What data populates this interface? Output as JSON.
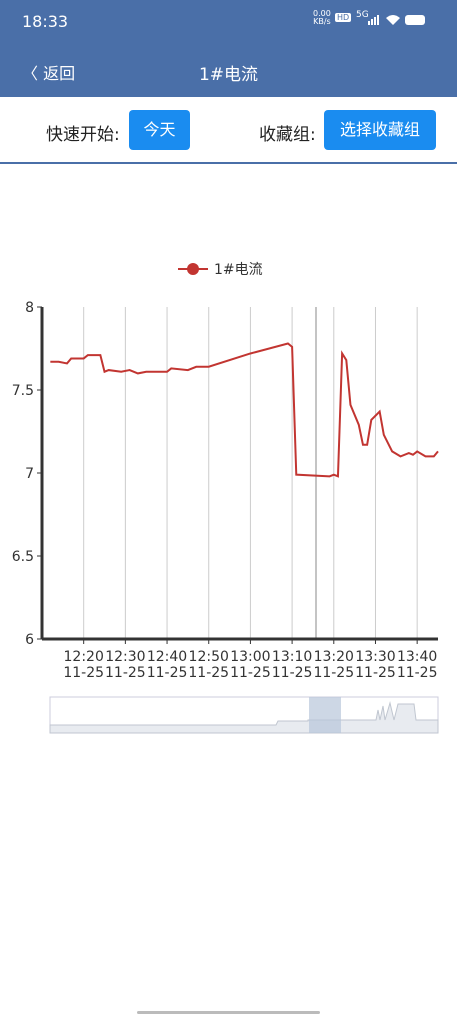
{
  "status_bar": {
    "time": "18:33",
    "speed": "0.00",
    "speed_unit": "KB/s",
    "hd": "HD",
    "network": "5G"
  },
  "nav": {
    "back": "返回",
    "title": "1#电流"
  },
  "toolbar": {
    "quick_label": "快速开始:",
    "quick_button": "今天",
    "group_label": "收藏组:",
    "group_button": "选择收藏组"
  },
  "chart_data": {
    "type": "line",
    "x": [
      "12:12",
      "12:14",
      "12:16",
      "12:17",
      "12:20",
      "12:21",
      "12:24",
      "12:25",
      "12:26",
      "12:29",
      "12:31",
      "12:33",
      "12:35",
      "12:40",
      "12:41",
      "12:45",
      "12:47",
      "12:50",
      "13:00",
      "13:09",
      "13:10",
      "13:11",
      "13:19",
      "13:20",
      "13:21",
      "13:22",
      "13:23",
      "13:24",
      "13:26",
      "13:27",
      "13:28",
      "13:29",
      "13:31",
      "13:32",
      "13:34",
      "13:36",
      "13:38",
      "13:39",
      "13:40",
      "13:42",
      "13:44",
      "13:45"
    ],
    "series": [
      {
        "name": "1#电流",
        "color": "#c23531",
        "values": [
          7.67,
          7.67,
          7.66,
          7.69,
          7.69,
          7.71,
          7.71,
          7.61,
          7.62,
          7.61,
          7.62,
          7.6,
          7.61,
          7.61,
          7.63,
          7.62,
          7.64,
          7.64,
          7.72,
          7.78,
          7.76,
          6.99,
          6.98,
          6.99,
          6.98,
          7.72,
          7.68,
          7.41,
          7.29,
          7.17,
          7.17,
          7.32,
          7.37,
          7.23,
          7.13,
          7.1,
          7.12,
          7.11,
          7.13,
          7.1,
          7.1,
          7.13
        ]
      }
    ],
    "xlim": [
      "12:10",
      "13:45"
    ],
    "xticks": [
      {
        "value": "12:20",
        "label": [
          "12:20",
          "11-25"
        ]
      },
      {
        "value": "12:30",
        "label": [
          "12:30",
          "11-25"
        ]
      },
      {
        "value": "12:40",
        "label": [
          "12:40",
          "11-25"
        ]
      },
      {
        "value": "12:50",
        "label": [
          "12:50",
          "11-25"
        ]
      },
      {
        "value": "13:00",
        "label": [
          "13:00",
          "11-25"
        ]
      },
      {
        "value": "13:10",
        "label": [
          "13:10",
          "11-25"
        ]
      },
      {
        "value": "13:20",
        "label": [
          "13:20",
          "11-25"
        ]
      },
      {
        "value": "13:30",
        "label": [
          "13:30",
          "11-25"
        ]
      },
      {
        "value": "13:40",
        "label": [
          "13:40",
          "11-25"
        ]
      }
    ],
    "ylim": [
      6,
      8
    ],
    "yticks": [
      6,
      6.5,
      7,
      7.5,
      8
    ],
    "grid": true
  }
}
